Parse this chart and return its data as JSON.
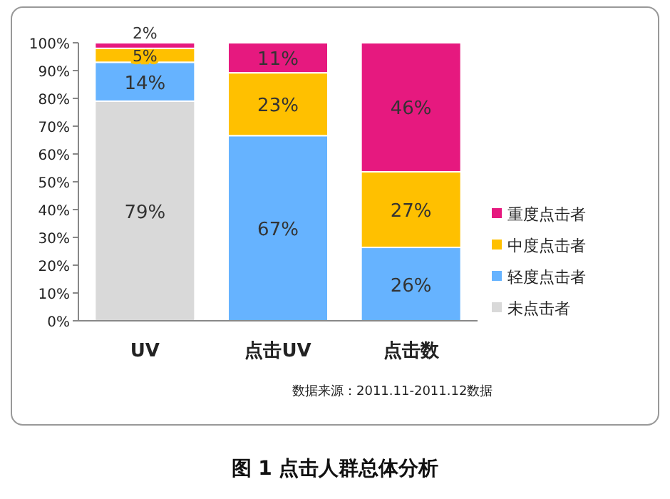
{
  "chart_data": {
    "type": "bar",
    "stacked": true,
    "title": "图 1  点击人群总体分析",
    "categories": [
      "UV",
      "点击UV",
      "点击数"
    ],
    "series": [
      {
        "name": "未点击者",
        "color": "#d9d9d9",
        "values": [
          79,
          0,
          0
        ],
        "value_labels": [
          "79%",
          null,
          null
        ]
      },
      {
        "name": "轻度点击者",
        "color": "#66b3ff",
        "values": [
          14,
          66.6,
          26.4
        ],
        "value_labels": [
          "14%",
          "67%",
          "26%"
        ]
      },
      {
        "name": "中度点击者",
        "color": "#ffc000",
        "values": [
          5,
          22.6,
          27.2
        ],
        "value_labels": [
          "5%",
          "23%",
          "27%"
        ]
      },
      {
        "name": "重度点击者",
        "color": "#e6197f",
        "values": [
          2,
          10.8,
          46.4
        ],
        "value_labels": [
          "2%",
          "11%",
          "46%"
        ]
      }
    ],
    "ylim": [
      0,
      100
    ],
    "yticks": [
      {
        "value": 0,
        "label": "0%"
      },
      {
        "value": 10,
        "label": "10%"
      },
      {
        "value": 20,
        "label": "20%"
      },
      {
        "value": 30,
        "label": "30%"
      },
      {
        "value": 40,
        "label": "40%"
      },
      {
        "value": 50,
        "label": "50%"
      },
      {
        "value": 60,
        "label": "60%"
      },
      {
        "value": 70,
        "label": "70%"
      },
      {
        "value": 80,
        "label": "80%"
      },
      {
        "value": 90,
        "label": "90%"
      },
      {
        "value": 100,
        "label": "100%"
      }
    ],
    "grid": false,
    "legend": "right",
    "annotations": [
      "数据来源：2011.11-2011.12数据"
    ]
  }
}
